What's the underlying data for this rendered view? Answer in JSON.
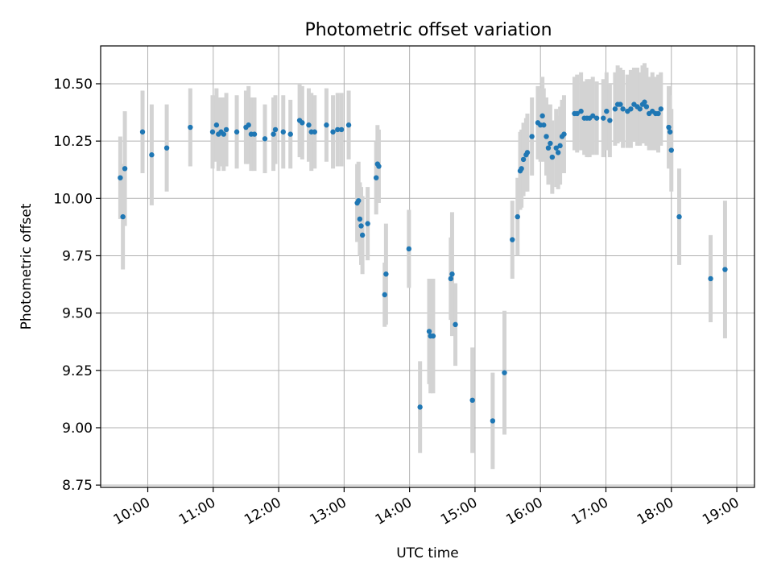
{
  "chart_data": {
    "type": "scatter",
    "title": "Photometric offset variation",
    "xlabel": "UTC time",
    "ylabel": "Photometric offset",
    "x_unit": "UTC hours",
    "xlim": [
      9.28,
      19.27
    ],
    "ylim": [
      8.74,
      10.665
    ],
    "x_ticks": [
      {
        "value": 10,
        "label": "10:00"
      },
      {
        "value": 11,
        "label": "11:00"
      },
      {
        "value": 12,
        "label": "12:00"
      },
      {
        "value": 13,
        "label": "13:00"
      },
      {
        "value": 14,
        "label": "14:00"
      },
      {
        "value": 15,
        "label": "15:00"
      },
      {
        "value": 16,
        "label": "16:00"
      },
      {
        "value": 17,
        "label": "17:00"
      },
      {
        "value": 18,
        "label": "18:00"
      },
      {
        "value": 19,
        "label": "19:00"
      }
    ],
    "y_ticks": [
      {
        "value": 8.75,
        "label": "8.75"
      },
      {
        "value": 9.0,
        "label": "9.00"
      },
      {
        "value": 9.25,
        "label": "9.25"
      },
      {
        "value": 9.5,
        "label": "9.50"
      },
      {
        "value": 9.75,
        "label": "9.75"
      },
      {
        "value": 10.0,
        "label": "10.00"
      },
      {
        "value": 10.25,
        "label": "10.25"
      },
      {
        "value": 10.5,
        "label": "10.50"
      }
    ],
    "grid": true,
    "colors": {
      "point": "#1f77b4",
      "errorbar": "#d3d3d3",
      "grid": "#b0b0b0"
    },
    "series": [
      {
        "points": [
          [
            9.58,
            10.09,
            0.18
          ],
          [
            9.62,
            9.92,
            0.23
          ],
          [
            9.65,
            10.13,
            0.25
          ],
          [
            9.92,
            10.29,
            0.18
          ],
          [
            10.06,
            10.19,
            0.22
          ],
          [
            10.29,
            10.22,
            0.19
          ],
          [
            10.65,
            10.31,
            0.17
          ],
          [
            10.99,
            10.29,
            0.16
          ],
          [
            11.05,
            10.32,
            0.16
          ],
          [
            11.08,
            10.28,
            0.16
          ],
          [
            11.12,
            10.29,
            0.15
          ],
          [
            11.16,
            10.28,
            0.16
          ],
          [
            11.2,
            10.3,
            0.16
          ],
          [
            11.36,
            10.29,
            0.16
          ],
          [
            11.5,
            10.31,
            0.16
          ],
          [
            11.54,
            10.32,
            0.17
          ],
          [
            11.58,
            10.28,
            0.16
          ],
          [
            11.63,
            10.28,
            0.16
          ],
          [
            11.79,
            10.26,
            0.15
          ],
          [
            11.92,
            10.28,
            0.16
          ],
          [
            11.95,
            10.3,
            0.15
          ],
          [
            12.07,
            10.29,
            0.16
          ],
          [
            12.18,
            10.28,
            0.15
          ],
          [
            12.32,
            10.34,
            0.16
          ],
          [
            12.36,
            10.33,
            0.16
          ],
          [
            12.46,
            10.32,
            0.16
          ],
          [
            12.5,
            10.29,
            0.17
          ],
          [
            12.55,
            10.29,
            0.16
          ],
          [
            12.73,
            10.32,
            0.16
          ],
          [
            12.83,
            10.29,
            0.16
          ],
          [
            12.9,
            10.3,
            0.16
          ],
          [
            12.96,
            10.3,
            0.16
          ],
          [
            13.07,
            10.32,
            0.15
          ],
          [
            13.2,
            9.98,
            0.17
          ],
          [
            13.22,
            9.99,
            0.17
          ],
          [
            13.24,
            9.91,
            0.16
          ],
          [
            13.26,
            9.88,
            0.17
          ],
          [
            13.28,
            9.84,
            0.17
          ],
          [
            13.36,
            9.89,
            0.16
          ],
          [
            13.49,
            10.09,
            0.16
          ],
          [
            13.51,
            10.15,
            0.17
          ],
          [
            13.53,
            10.14,
            0.16
          ],
          [
            13.62,
            9.58,
            0.14
          ],
          [
            13.64,
            9.67,
            0.22
          ],
          [
            13.99,
            9.78,
            0.17
          ],
          [
            14.16,
            9.09,
            0.2
          ],
          [
            14.3,
            9.42,
            0.23
          ],
          [
            14.32,
            9.4,
            0.25
          ],
          [
            14.36,
            9.4,
            0.25
          ],
          [
            14.63,
            9.65,
            0.18
          ],
          [
            14.65,
            9.67,
            0.27
          ],
          [
            14.7,
            9.45,
            0.18
          ],
          [
            14.96,
            9.12,
            0.23
          ],
          [
            15.27,
            9.03,
            0.21
          ],
          [
            15.45,
            9.24,
            0.27
          ],
          [
            15.57,
            9.82,
            0.17
          ],
          [
            15.65,
            9.92,
            0.17
          ],
          [
            15.69,
            10.12,
            0.17
          ],
          [
            15.71,
            10.13,
            0.17
          ],
          [
            15.74,
            10.17,
            0.16
          ],
          [
            15.78,
            10.19,
            0.16
          ],
          [
            15.8,
            10.2,
            0.17
          ],
          [
            15.87,
            10.27,
            0.17
          ],
          [
            15.96,
            10.33,
            0.16
          ],
          [
            16.0,
            10.32,
            0.16
          ],
          [
            16.03,
            10.36,
            0.17
          ],
          [
            16.05,
            10.32,
            0.16
          ],
          [
            16.09,
            10.27,
            0.17
          ],
          [
            16.12,
            10.22,
            0.16
          ],
          [
            16.15,
            10.24,
            0.17
          ],
          [
            16.18,
            10.18,
            0.16
          ],
          [
            16.24,
            10.22,
            0.17
          ],
          [
            16.27,
            10.2,
            0.16
          ],
          [
            16.3,
            10.23,
            0.17
          ],
          [
            16.33,
            10.27,
            0.16
          ],
          [
            16.36,
            10.28,
            0.17
          ],
          [
            16.52,
            10.37,
            0.16
          ],
          [
            16.56,
            10.37,
            0.17
          ],
          [
            16.62,
            10.38,
            0.17
          ],
          [
            16.67,
            10.35,
            0.16
          ],
          [
            16.71,
            10.35,
            0.17
          ],
          [
            16.75,
            10.35,
            0.17
          ],
          [
            16.8,
            10.36,
            0.17
          ],
          [
            16.86,
            10.35,
            0.16
          ],
          [
            16.96,
            10.35,
            0.17
          ],
          [
            17.01,
            10.38,
            0.17
          ],
          [
            17.06,
            10.34,
            0.16
          ],
          [
            17.14,
            10.39,
            0.16
          ],
          [
            17.18,
            10.41,
            0.17
          ],
          [
            17.22,
            10.41,
            0.16
          ],
          [
            17.26,
            10.39,
            0.17
          ],
          [
            17.33,
            10.38,
            0.16
          ],
          [
            17.38,
            10.39,
            0.17
          ],
          [
            17.43,
            10.41,
            0.16
          ],
          [
            17.48,
            10.4,
            0.17
          ],
          [
            17.52,
            10.39,
            0.16
          ],
          [
            17.56,
            10.41,
            0.17
          ],
          [
            17.59,
            10.42,
            0.17
          ],
          [
            17.62,
            10.4,
            0.17
          ],
          [
            17.66,
            10.37,
            0.16
          ],
          [
            17.71,
            10.38,
            0.17
          ],
          [
            17.76,
            10.37,
            0.16
          ],
          [
            17.8,
            10.37,
            0.17
          ],
          [
            17.84,
            10.39,
            0.16
          ],
          [
            17.96,
            10.31,
            0.18
          ],
          [
            17.98,
            10.29,
            0.16
          ],
          [
            18.0,
            10.21,
            0.18
          ],
          [
            18.12,
            9.92,
            0.21
          ],
          [
            18.6,
            9.65,
            0.19
          ],
          [
            18.82,
            9.69,
            0.3
          ]
        ]
      }
    ]
  }
}
